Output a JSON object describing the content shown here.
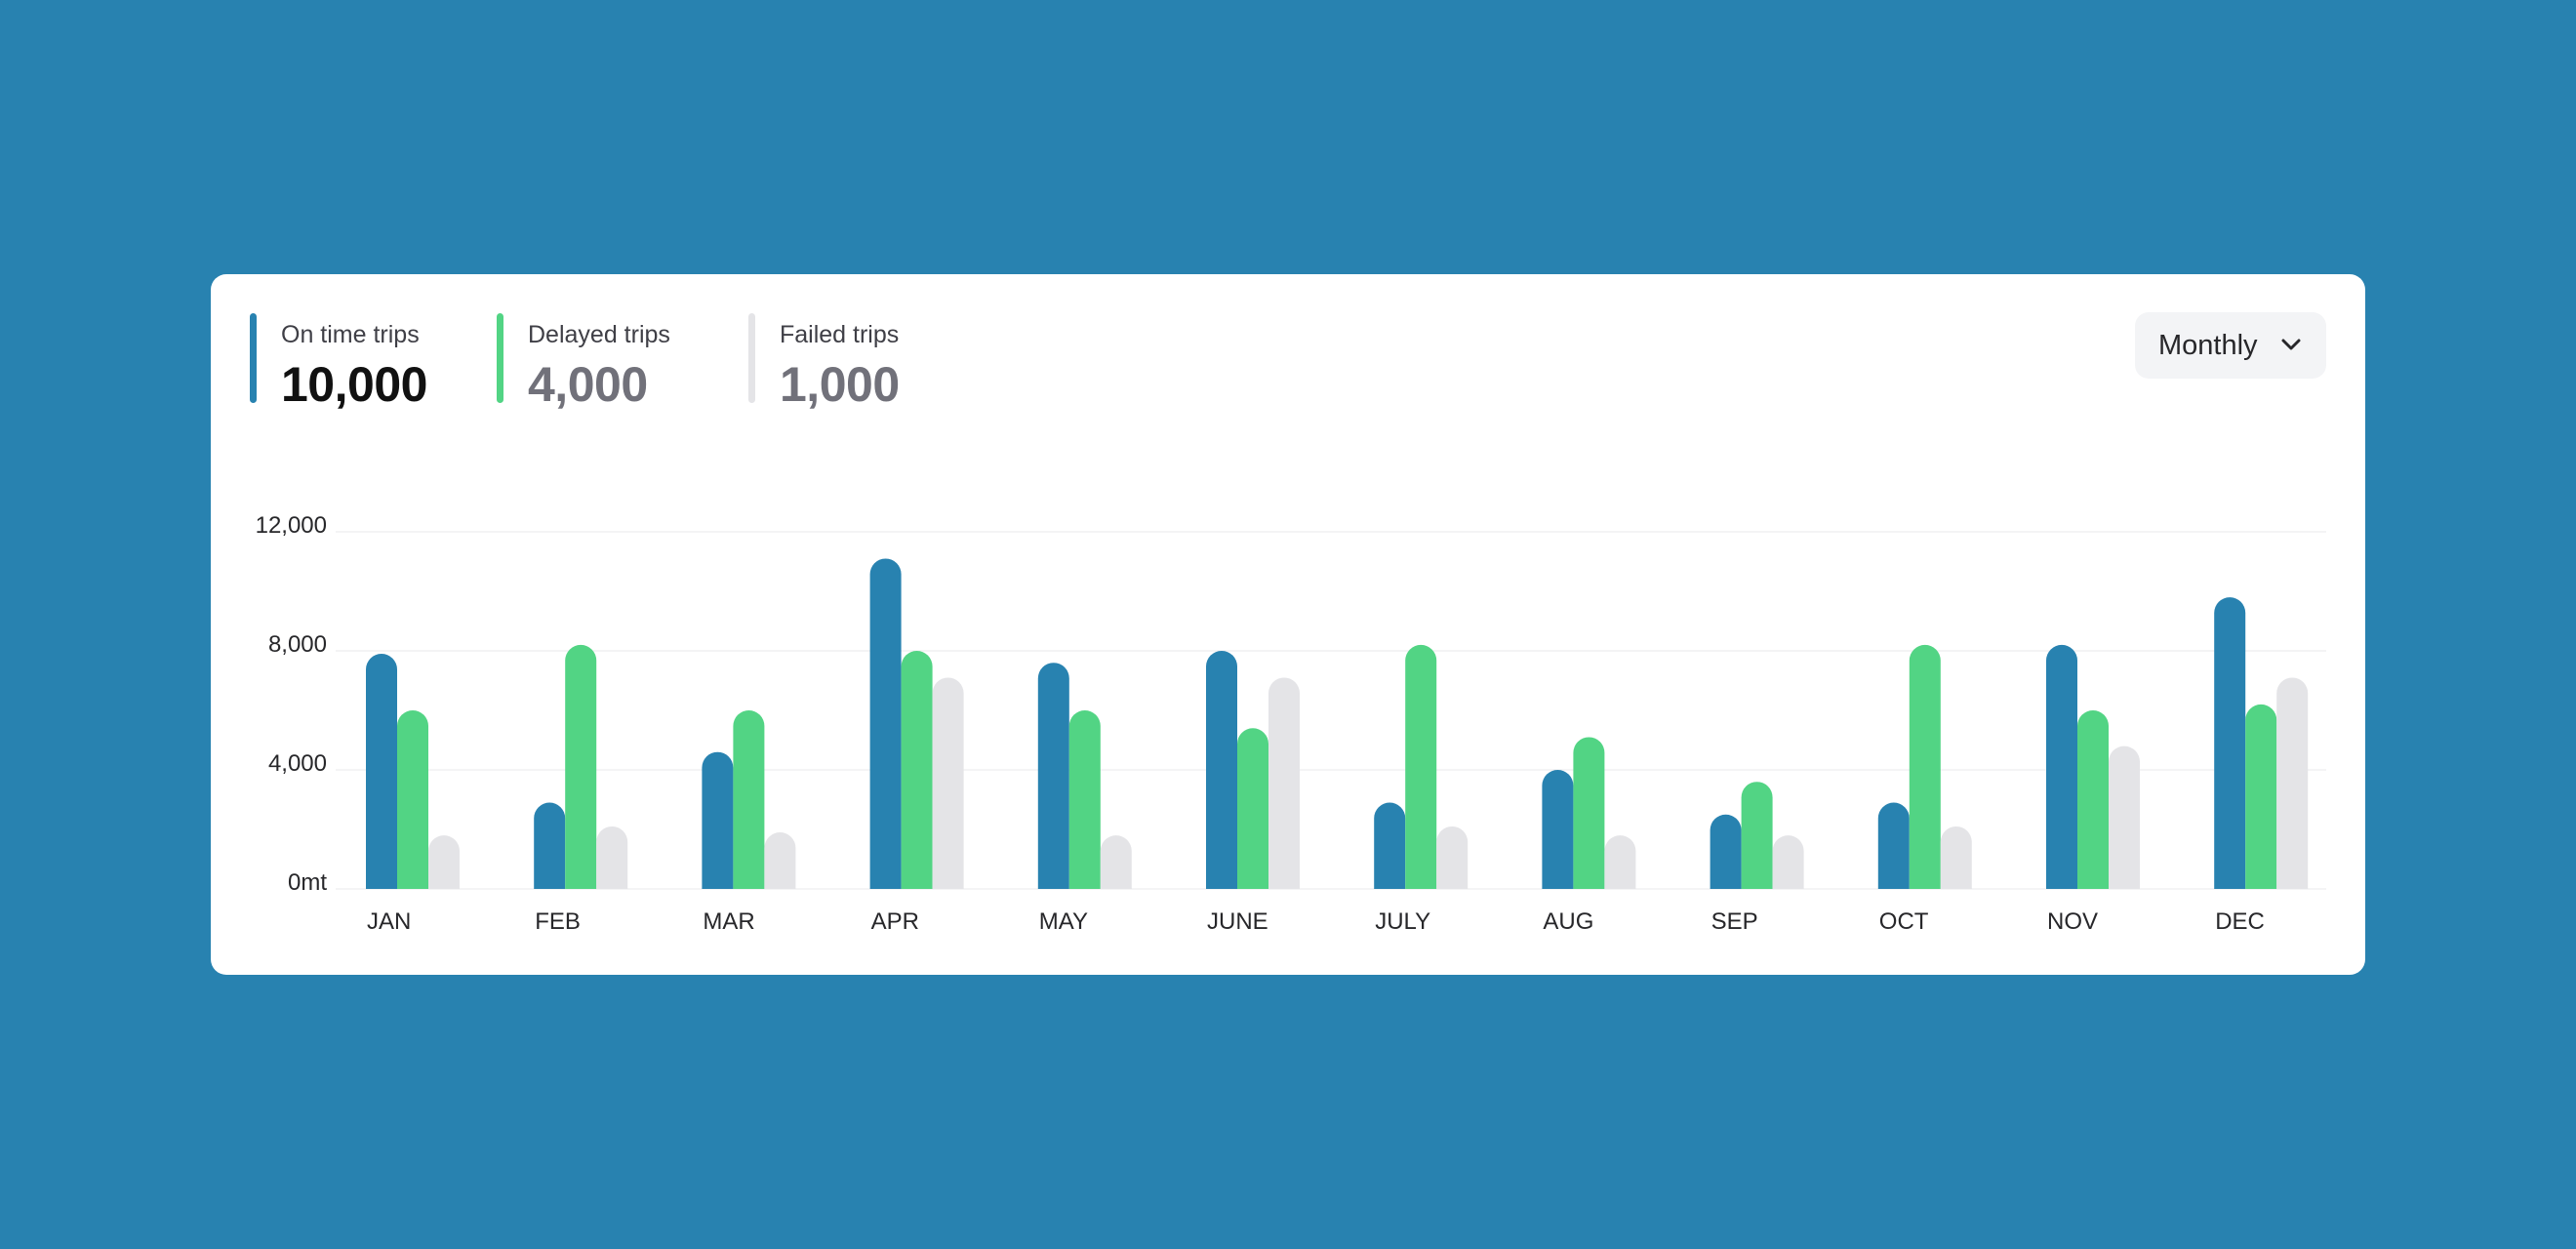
{
  "stats": [
    {
      "label": "On time trips",
      "value": "10,000",
      "bar_color": "#2882B0",
      "value_color": "#111111"
    },
    {
      "label": "Delayed trips",
      "value": "4,000",
      "bar_color": "#52D484",
      "value_color": "#71717a"
    },
    {
      "label": "Failed trips",
      "value": "1,000",
      "bar_color": "#E4E4E7",
      "value_color": "#71717a"
    }
  ],
  "period_select": {
    "label": "Monthly",
    "icon": "chevron-down-icon"
  },
  "chart_data": {
    "type": "bar",
    "categories": [
      "JAN",
      "FEB",
      "MAR",
      "APR",
      "MAY",
      "JUNE",
      "JULY",
      "AUG",
      "SEP",
      "OCT",
      "NOV",
      "DEC"
    ],
    "series": [
      {
        "name": "On time trips",
        "color": "#2882B0",
        "values": [
          7900,
          2900,
          4600,
          11100,
          7600,
          8000,
          2900,
          4000,
          2500,
          2900,
          8200,
          9800
        ]
      },
      {
        "name": "Delayed trips",
        "color": "#52D484",
        "values": [
          6000,
          8200,
          6000,
          8000,
          6000,
          5400,
          8200,
          5100,
          3600,
          8200,
          6000,
          6200
        ]
      },
      {
        "name": "Failed trips",
        "color": "#E4E4E7",
        "values": [
          1800,
          2100,
          1900,
          7100,
          1800,
          7100,
          2100,
          1800,
          1800,
          2100,
          4800,
          7100
        ]
      }
    ],
    "yticks": [
      {
        "value": 0,
        "label": "0mt"
      },
      {
        "value": 4000,
        "label": "4,000"
      },
      {
        "value": 8000,
        "label": "8,000"
      },
      {
        "value": 12000,
        "label": "12,000"
      }
    ],
    "ylim": [
      0,
      12000
    ],
    "grid": true,
    "legend": "top-left"
  }
}
